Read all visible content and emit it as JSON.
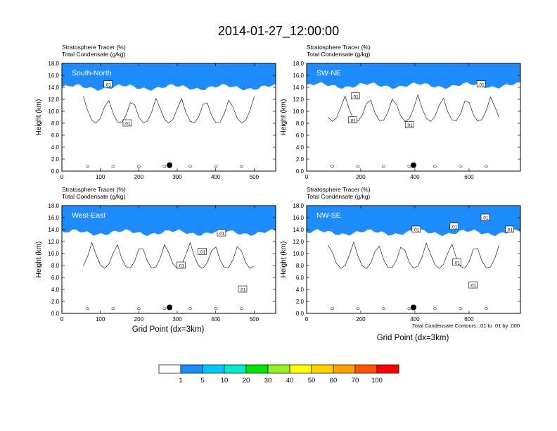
{
  "figure": {
    "title": "2014-01-27_12:00:00",
    "xlabel": "Grid Point (dx=3km)",
    "contour_note": "Total Condensate Contours: .01 to .01 by .000"
  },
  "colorbar": {
    "labels": [
      "1",
      "5",
      "10",
      "20",
      "30",
      "40",
      "50",
      "60",
      "70",
      "100"
    ],
    "colors": [
      "#ffffff",
      "#1e8cff",
      "#00c8ff",
      "#00ebc8",
      "#00e600",
      "#96f028",
      "#ffff00",
      "#ffd200",
      "#ffa000",
      "#ff5500",
      "#ff0000"
    ]
  },
  "chart_data": [
    {
      "type": "heatmap",
      "panel": "South-North",
      "title_line1": "Stratosphere Tracer   (%)",
      "title_line2": "Total Condensate   (g/kg)",
      "ylabel": "Height (km)",
      "xlim": [
        0,
        556
      ],
      "ylim": [
        0,
        18
      ],
      "xticks": [
        "0",
        "100",
        "200",
        "300",
        "400",
        "500"
      ],
      "yticks": [
        "0.0",
        "2.0",
        "4.0",
        "6.0",
        "8.0",
        "10.0",
        "12.0",
        "14.0",
        "16.0",
        "18.0"
      ],
      "contour_labels": [
        {
          "text": ".01",
          "x": 120,
          "y": 14.5
        },
        {
          "text": ".01",
          "x": 170,
          "y": 8.0
        }
      ],
      "marker": {
        "x": 280,
        "y": 1.0
      },
      "tracer_base_km": 14.0
    },
    {
      "type": "heatmap",
      "panel": "SW-NE",
      "title_line1": "Stratosphere Tracer   (%)",
      "title_line2": "Total Condensate   (g/kg)",
      "ylabel": "Height (km)",
      "xlim": [
        0,
        790
      ],
      "ylim": [
        0,
        18
      ],
      "xticks": [
        "0",
        "200",
        "400",
        "600"
      ],
      "yticks": [
        "0.0",
        "2.0",
        "4.0",
        "6.0",
        "8.0",
        "10.0",
        "12.0",
        "14.0",
        "16.0",
        "18.0"
      ],
      "contour_labels": [
        {
          "text": ".01",
          "x": 645,
          "y": 14.5
        },
        {
          "text": ".01",
          "x": 180,
          "y": 12.5
        },
        {
          "text": ".01",
          "x": 170,
          "y": 8.5
        },
        {
          "text": ".01",
          "x": 380,
          "y": 7.7
        }
      ],
      "marker": {
        "x": 395,
        "y": 1.0
      },
      "tracer_base_km": 14.3
    },
    {
      "type": "heatmap",
      "panel": "West-East",
      "title_line1": "Stratosphere Tracer   (%)",
      "title_line2": "Total Condensate   (g/kg)",
      "ylabel": "Height (km)",
      "xlim": [
        0,
        556
      ],
      "ylim": [
        0,
        18
      ],
      "xticks": [
        "0",
        "100",
        "200",
        "300",
        "400",
        "500"
      ],
      "yticks": [
        "0.0",
        "2.0",
        "4.0",
        "6.0",
        "8.0",
        "10.0",
        "12.0",
        "14.0",
        "16.0",
        "18.0"
      ],
      "contour_labels": [
        {
          "text": ".01",
          "x": 415,
          "y": 13.4
        },
        {
          "text": ".01",
          "x": 365,
          "y": 10.3
        },
        {
          "text": ".01",
          "x": 310,
          "y": 8.0
        },
        {
          "text": ".01",
          "x": 470,
          "y": 4.0
        }
      ],
      "marker": {
        "x": 280,
        "y": 1.0
      },
      "tracer_base_km": 13.5
    },
    {
      "type": "heatmap",
      "panel": "NW-SE",
      "title_line1": "Stratosphere Tracer   (%)",
      "title_line2": "Total Condensate   (g/kg)",
      "ylabel": "Height (km)",
      "xlim": [
        0,
        790
      ],
      "ylim": [
        0,
        18
      ],
      "xticks": [
        "0",
        "200",
        "400",
        "600"
      ],
      "yticks": [
        "0.0",
        "2.0",
        "4.0",
        "6.0",
        "8.0",
        "10.0",
        "12.0",
        "14.0",
        "16.0",
        "18.0"
      ],
      "contour_labels": [
        {
          "text": ".01",
          "x": 405,
          "y": 14.0
        },
        {
          "text": ".01",
          "x": 545,
          "y": 14.5
        },
        {
          "text": ".01",
          "x": 660,
          "y": 16.0
        },
        {
          "text": ".01",
          "x": 750,
          "y": 14.0
        },
        {
          "text": ".01",
          "x": 555,
          "y": 8.5
        },
        {
          "text": ".01",
          "x": 615,
          "y": 4.7
        }
      ],
      "marker": {
        "x": 395,
        "y": 1.0
      },
      "tracer_base_km": 13.5
    }
  ]
}
